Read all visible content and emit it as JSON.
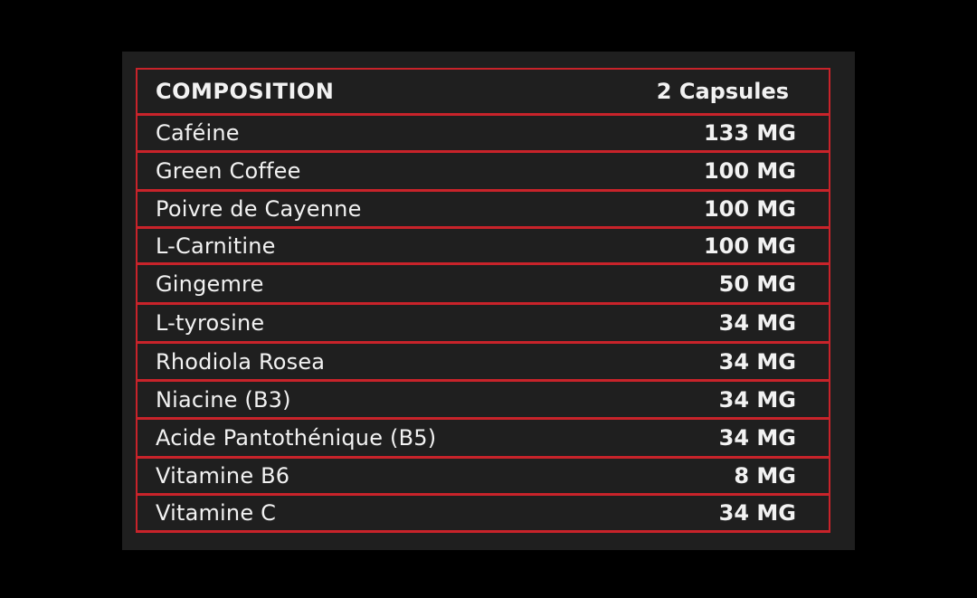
{
  "header": {
    "title": "COMPOSITION",
    "serving": "2 Capsules"
  },
  "rows": [
    {
      "name": "Caféine",
      "amount": "133 MG"
    },
    {
      "name": "Green Coffee",
      "amount": "100 MG"
    },
    {
      "name": "Poivre de Cayenne",
      "amount": "100 MG"
    },
    {
      "name": "L-Carnitine",
      "amount": "100 MG"
    },
    {
      "name": "Gingemre",
      "amount": "50 MG"
    },
    {
      "name": "L-tyrosine",
      "amount": "34 MG"
    },
    {
      "name": "Rhodiola Rosea",
      "amount": "34 MG"
    },
    {
      "name": "Niacine (B3)",
      "amount": "34 MG"
    },
    {
      "name": "Acide Pantothénique (B5)",
      "amount": "34 MG"
    },
    {
      "name": "Vitamine B6",
      "amount": "8 MG"
    },
    {
      "name": "Vitamine C",
      "amount": "34 MG"
    }
  ],
  "colors": {
    "border": "#c8232a",
    "panel": "#1f1f1f",
    "text": "#f2f2f2"
  }
}
